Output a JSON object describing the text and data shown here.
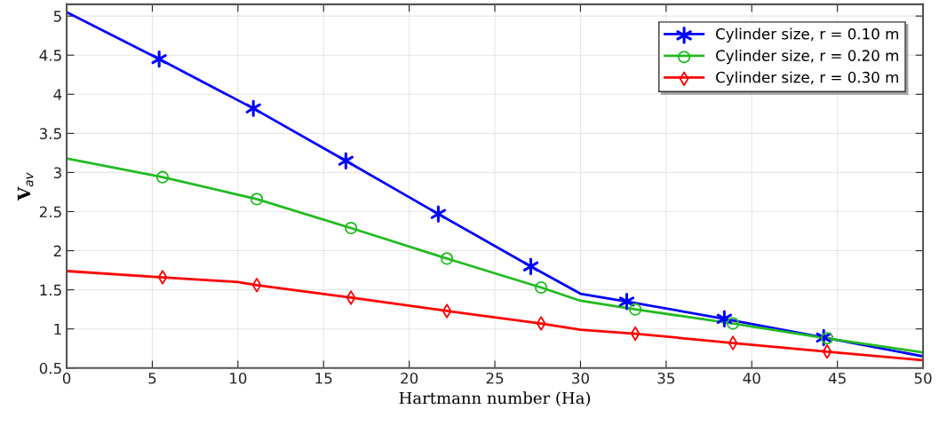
{
  "chart_data": {
    "type": "line",
    "xlabel": "Hartmann number (Ha)",
    "ylabel": "V$_{av}$",
    "xlim": [
      0,
      50
    ],
    "ylim": [
      0.5,
      5.15
    ],
    "xticks": [
      0,
      5,
      10,
      15,
      20,
      25,
      30,
      35,
      40,
      45,
      50
    ],
    "yticks": [
      0.5,
      1,
      1.5,
      2,
      2.5,
      3,
      3.5,
      4,
      4.5,
      5
    ],
    "grid": true,
    "legend": "top right",
    "series": [
      {
        "name": "Cylinder size, r = 0.10 m",
        "color": "#0000ff",
        "marker": "none",
        "line_style": "solid",
        "x": [
          0,
          5.4,
          10.9,
          16.3,
          21.7,
          27.1,
          30,
          32.7,
          38.4,
          44.2,
          50
        ],
        "values": [
          5.05,
          4.45,
          3.82,
          3.15,
          2.47,
          1.8,
          1.45,
          1.35,
          1.13,
          0.89,
          0.65
        ]
      },
      {
        "color": "#0000ff",
        "type": "scatter",
        "marker": "cross",
        "x": [
          5.4,
          10.9,
          16.3,
          21.7,
          27.1,
          32.7,
          38.4,
          44.2
        ],
        "values": [
          4.45,
          3.82,
          3.15,
          2.47,
          1.8,
          1.35,
          1.13,
          0.89
        ]
      },
      {
        "name": "Cylinder size, r = 0.20 m",
        "color": "#22bb22",
        "marker": "none",
        "line_style": "solid",
        "x": [
          0,
          5.6,
          11.1,
          16.6,
          22.2,
          27.7,
          30,
          33.2,
          38.9,
          44.4,
          50
        ],
        "values": [
          3.18,
          2.94,
          2.66,
          2.29,
          1.9,
          1.53,
          1.36,
          1.25,
          1.07,
          0.88,
          0.7
        ]
      },
      {
        "color": "#22bb22",
        "type": "scatter",
        "marker": "circle",
        "x": [
          5.6,
          11.1,
          16.6,
          22.2,
          27.7,
          33.2,
          38.9,
          44.4
        ],
        "values": [
          2.94,
          2.66,
          2.29,
          1.9,
          1.53,
          1.25,
          1.07,
          0.88
        ]
      },
      {
        "name": "Cylinder size, r = 0.30 m",
        "color": "#ff0000",
        "marker": "none",
        "line_style": "solid",
        "x": [
          0,
          5.6,
          10,
          11.1,
          16.6,
          22.2,
          27.7,
          30,
          33.2,
          38.9,
          44.4,
          50
        ],
        "values": [
          1.74,
          1.66,
          1.6,
          1.56,
          1.4,
          1.23,
          1.07,
          0.99,
          0.94,
          0.82,
          0.71,
          0.6
        ]
      },
      {
        "color": "#ff0000",
        "type": "scatter",
        "marker": "diamond",
        "x": [
          5.6,
          11.1,
          16.6,
          22.2,
          27.7,
          33.2,
          38.9,
          44.4
        ],
        "values": [
          1.66,
          1.56,
          1.4,
          1.23,
          1.07,
          0.94,
          0.82,
          0.71
        ]
      }
    ]
  }
}
